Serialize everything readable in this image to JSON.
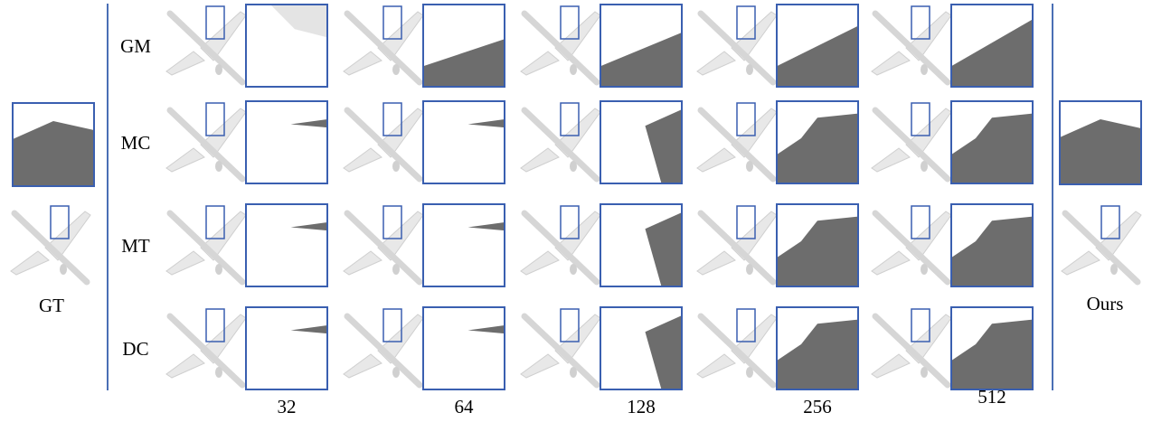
{
  "figure": {
    "gt_label": "GT",
    "ours_label": "Ours",
    "rows": [
      "GM",
      "MC",
      "MT",
      "DC"
    ],
    "columns": [
      32,
      64,
      128,
      256,
      512
    ]
  }
}
